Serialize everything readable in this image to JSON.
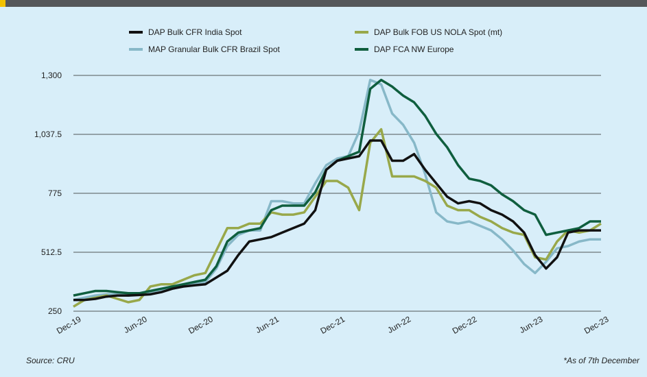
{
  "chart_data": {
    "type": "line",
    "categories": [
      "Dec-19",
      null,
      null,
      null,
      null,
      null,
      "Jun-20",
      null,
      null,
      null,
      null,
      null,
      "Dec-20",
      null,
      null,
      null,
      null,
      null,
      "Jun-21",
      null,
      null,
      null,
      null,
      null,
      "Dec-21",
      null,
      null,
      null,
      null,
      null,
      "Jun-22",
      null,
      null,
      null,
      null,
      null,
      "Dec-22",
      null,
      null,
      null,
      null,
      null,
      "Jun-23",
      null,
      null,
      null,
      null,
      null,
      "Dec-23"
    ],
    "series": [
      {
        "name": "DAP Bulk CFR India Spot",
        "color": "#111111",
        "values": [
          300,
          300,
          305,
          315,
          320,
          320,
          322,
          325,
          335,
          350,
          360,
          365,
          370,
          400,
          430,
          500,
          560,
          570,
          580,
          600,
          620,
          640,
          700,
          880,
          920,
          930,
          940,
          1010,
          1010,
          920,
          920,
          950,
          880,
          820,
          760,
          730,
          740,
          730,
          700,
          680,
          650,
          600,
          500,
          440,
          490,
          600,
          610,
          610,
          610
        ]
      },
      {
        "name": "DAP Bulk FOB US NOLA Spot (mt)",
        "color": "#98a84a",
        "values": [
          270,
          300,
          310,
          320,
          305,
          290,
          300,
          360,
          370,
          370,
          390,
          410,
          420,
          520,
          620,
          620,
          640,
          640,
          690,
          680,
          680,
          690,
          760,
          830,
          830,
          800,
          700,
          1000,
          1060,
          850,
          850,
          850,
          830,
          800,
          720,
          700,
          700,
          670,
          650,
          620,
          600,
          590,
          490,
          480,
          560,
          610,
          600,
          610,
          640
        ]
      },
      {
        "name": "MAP Granular Bulk CFR Brazil Spot",
        "color": "#87b8c8",
        "values": [
          300,
          310,
          320,
          325,
          325,
          320,
          325,
          330,
          345,
          355,
          365,
          370,
          380,
          440,
          540,
          590,
          610,
          610,
          740,
          740,
          730,
          730,
          820,
          900,
          930,
          940,
          1050,
          1280,
          1260,
          1130,
          1080,
          1000,
          860,
          690,
          650,
          640,
          650,
          630,
          610,
          570,
          520,
          460,
          420,
          470,
          530,
          540,
          560,
          570,
          570
        ]
      },
      {
        "name": "DAP FCA NW Europe",
        "color": "#0f5e3e",
        "values": [
          320,
          330,
          340,
          340,
          335,
          330,
          330,
          340,
          350,
          360,
          370,
          380,
          390,
          450,
          560,
          600,
          610,
          620,
          700,
          720,
          720,
          720,
          780,
          880,
          920,
          940,
          960,
          1240,
          1280,
          1250,
          1210,
          1180,
          1120,
          1040,
          980,
          900,
          840,
          830,
          810,
          770,
          740,
          700,
          680,
          590,
          600,
          610,
          620,
          650,
          650
        ]
      }
    ],
    "ylim": [
      250,
      1300
    ],
    "yticks": [
      250,
      512.5,
      775,
      {
        "value": 1037.5,
        "label": "1,037.5"
      },
      {
        "value": 1300,
        "label": "1,300"
      }
    ],
    "grid": true,
    "source": "Source: CRU",
    "note": "*As of 7th December"
  }
}
